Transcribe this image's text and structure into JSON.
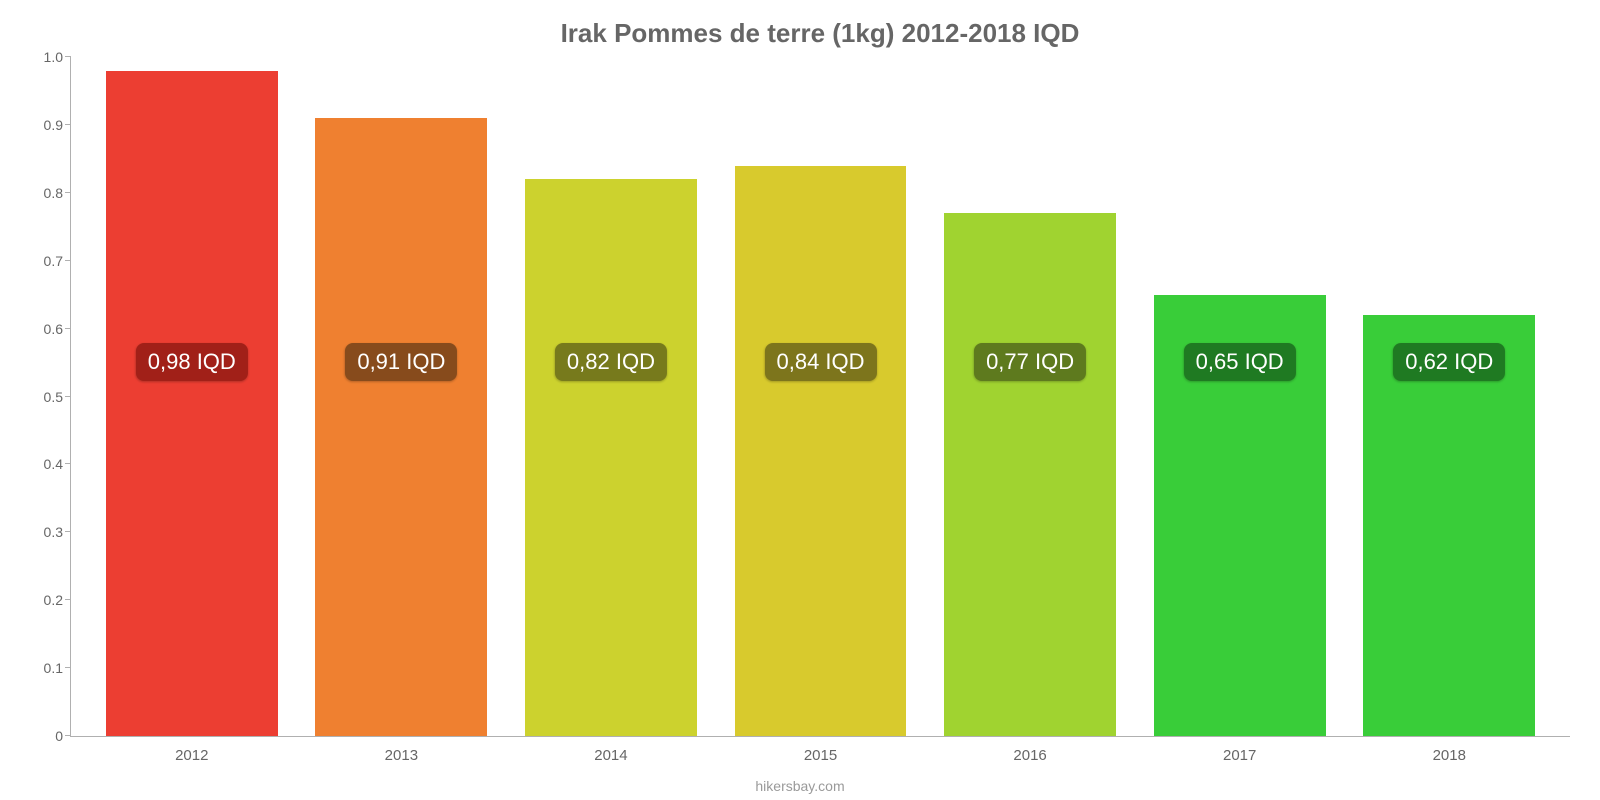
{
  "chart": {
    "type": "bar",
    "title": "Irak Pommes de terre (1kg) 2012-2018 IQD",
    "title_color": "#666666",
    "title_fontsize": 26,
    "footer": "hikersbay.com",
    "footer_color": "#9a9a9a",
    "background_color": "#ffffff",
    "axis_color": "#b0b0b0",
    "tick_label_color": "#666666",
    "tick_fontsize": 14,
    "x_label_fontsize": 15,
    "bar_width_pct": 82,
    "ylim": [
      0,
      1.0
    ],
    "yticks": [
      0,
      0.1,
      0.2,
      0.3,
      0.4,
      0.5,
      0.6,
      0.7,
      0.8,
      0.9,
      1.0
    ],
    "ytick_labels": [
      "0",
      "0.1",
      "0.2",
      "0.3",
      "0.4",
      "0.5",
      "0.6",
      "0.7",
      "0.8",
      "0.9",
      "1.0"
    ],
    "categories": [
      "2012",
      "2013",
      "2014",
      "2015",
      "2016",
      "2017",
      "2018"
    ],
    "values": [
      0.98,
      0.91,
      0.82,
      0.84,
      0.77,
      0.65,
      0.62
    ],
    "value_labels": [
      "0,98 IQD",
      "0,91 IQD",
      "0,82 IQD",
      "0,84 IQD",
      "0,77 IQD",
      "0,65 IQD",
      "0,62 IQD"
    ],
    "bar_colors": [
      "#ec3e32",
      "#ef8030",
      "#ccd22e",
      "#d8ca2d",
      "#a0d330",
      "#39cd39",
      "#39cd39"
    ],
    "label_bg_colors": [
      "#a12018",
      "#874b1c",
      "#777a1c",
      "#7d751c",
      "#5e7a1e",
      "#1f7a22",
      "#1f7a22"
    ],
    "label_text_color": "#ffffff",
    "label_fontsize": 22,
    "label_y_value": 0.55
  }
}
